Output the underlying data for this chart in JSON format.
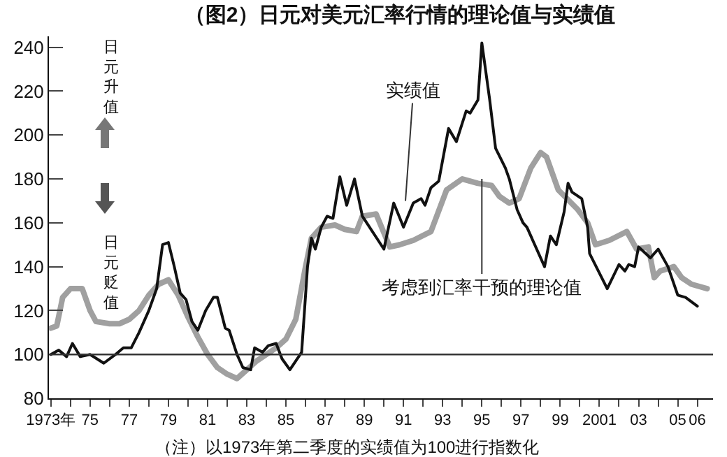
{
  "chart_data": {
    "type": "line",
    "title": "（图2）日元对美元汇率行情的理论值与实绩值",
    "xlim": [
      1972.9,
      2006.8
    ],
    "xticks": [
      {
        "value": 1973,
        "label": "1973年"
      },
      {
        "value": 1974,
        "label": null
      },
      {
        "value": 1975,
        "label": "75"
      },
      {
        "value": 1976,
        "label": null
      },
      {
        "value": 1977,
        "label": "77"
      },
      {
        "value": 1978,
        "label": null
      },
      {
        "value": 1979,
        "label": "79"
      },
      {
        "value": 1980,
        "label": null
      },
      {
        "value": 1981,
        "label": "81"
      },
      {
        "value": 1982,
        "label": null
      },
      {
        "value": 1983,
        "label": "83"
      },
      {
        "value": 1984,
        "label": null
      },
      {
        "value": 1985,
        "label": "85"
      },
      {
        "value": 1986,
        "label": null
      },
      {
        "value": 1987,
        "label": "87"
      },
      {
        "value": 1988,
        "label": null
      },
      {
        "value": 1989,
        "label": "89"
      },
      {
        "value": 1990,
        "label": null
      },
      {
        "value": 1991,
        "label": "91"
      },
      {
        "value": 1992,
        "label": null
      },
      {
        "value": 1993,
        "label": "93"
      },
      {
        "value": 1994,
        "label": null
      },
      {
        "value": 1995,
        "label": "95"
      },
      {
        "value": 1996,
        "label": null
      },
      {
        "value": 1997,
        "label": "97"
      },
      {
        "value": 1998,
        "label": null
      },
      {
        "value": 1999,
        "label": "99"
      },
      {
        "value": 2000,
        "label": null
      },
      {
        "value": 2001,
        "label": "2001"
      },
      {
        "value": 2002,
        "label": null
      },
      {
        "value": 2003,
        "label": "03"
      },
      {
        "value": 2004,
        "label": null
      },
      {
        "value": 2005,
        "label": "05"
      },
      {
        "value": 2006,
        "label": "06"
      }
    ],
    "ylim": [
      80,
      245
    ],
    "yticks": [
      80,
      100,
      120,
      140,
      160,
      180,
      200,
      220,
      240
    ],
    "grid": false,
    "marker": "none",
    "line_style": "solid",
    "ref_lines": [
      {
        "axis": "y",
        "value": 100,
        "color": "#333333"
      }
    ],
    "series": [
      {
        "color": "#a0a0a0",
        "x": [
          1973.0,
          1973.3,
          1973.6,
          1974.0,
          1974.6,
          1975.0,
          1975.3,
          1976.0,
          1976.5,
          1977.0,
          1977.5,
          1978.0,
          1978.5,
          1979.0,
          1979.5,
          1980.0,
          1980.5,
          1981.0,
          1981.5,
          1982.0,
          1982.5,
          1983.0,
          1983.5,
          1984.0,
          1984.5,
          1985.0,
          1985.5,
          1986.0,
          1986.3,
          1986.8,
          1987.5,
          1988.0,
          1988.6,
          1988.9,
          1989.6,
          1990.3,
          1990.8,
          1991.5,
          1992.4,
          1993.2,
          1994.0,
          1994.8,
          1995.5,
          1995.9,
          1996.4,
          1996.9,
          1997.5,
          1998.0,
          1998.3,
          1998.9,
          1999.9,
          2000.4,
          2000.8,
          2001.5,
          2002.4,
          2002.9,
          2003.5,
          2003.8,
          2004.1,
          2004.8,
          2005.2,
          2005.7,
          2006.5
        ],
        "values": [
          112,
          113,
          126,
          130,
          130,
          120,
          115,
          114,
          114,
          116,
          120,
          127,
          132,
          134,
          127,
          117,
          108,
          100,
          94,
          91,
          89,
          93,
          97,
          100,
          103,
          107,
          116,
          140,
          153,
          158,
          159,
          157,
          156,
          163,
          164,
          149,
          150,
          152,
          156,
          175,
          180,
          178,
          177,
          172,
          169,
          171,
          185,
          192,
          190,
          175,
          166,
          160,
          150,
          152,
          156,
          148,
          149,
          135,
          138,
          140,
          135,
          132,
          130
        ]
      },
      {
        "color": "#111111",
        "x": [
          1973.0,
          1973.4,
          1973.8,
          1974.1,
          1974.5,
          1975.0,
          1975.7,
          1976.3,
          1976.7,
          1977.1,
          1977.5,
          1978.0,
          1978.4,
          1978.7,
          1979.0,
          1979.3,
          1979.6,
          1979.9,
          1980.2,
          1980.5,
          1980.9,
          1981.3,
          1981.5,
          1981.9,
          1982.1,
          1982.5,
          1982.8,
          1983.2,
          1983.4,
          1983.8,
          1984.1,
          1984.5,
          1984.8,
          1985.2,
          1985.8,
          1986.1,
          1986.3,
          1986.5,
          1986.8,
          1987.1,
          1987.4,
          1987.75,
          1988.1,
          1988.5,
          1988.9,
          1990.0,
          1990.5,
          1991.0,
          1991.5,
          1991.9,
          1992.1,
          1992.4,
          1992.8,
          1993.3,
          1993.7,
          1994.2,
          1994.4,
          1994.8,
          1995.0,
          1995.4,
          1995.7,
          1996.2,
          1996.4,
          1996.8,
          1997.1,
          1997.3,
          1998.2,
          1998.5,
          1998.8,
          1999.2,
          1999.4,
          1999.6,
          2000.1,
          2000.4,
          2000.5,
          2001.4,
          2002.0,
          2002.3,
          2002.5,
          2002.8,
          2003.0,
          2003.6,
          2004.0,
          2004.5,
          2005.0,
          2005.4,
          2006.0
        ],
        "values": [
          100,
          102,
          99,
          105,
          99,
          100,
          96,
          100,
          103,
          103,
          110,
          120,
          130,
          150,
          151,
          140,
          128,
          125,
          115,
          111,
          120,
          126,
          126,
          112,
          111,
          100,
          94,
          93,
          103,
          101,
          104,
          105,
          98,
          93,
          101,
          140,
          153,
          148,
          158,
          163,
          162,
          181,
          168,
          180,
          163,
          148,
          169,
          158,
          169,
          171,
          168,
          176,
          179,
          203,
          197,
          211,
          210,
          216,
          242,
          216,
          194,
          185,
          180,
          166,
          160,
          158,
          140,
          154,
          150,
          165,
          178,
          174,
          171,
          158,
          146,
          130,
          141,
          138,
          141,
          140,
          149,
          144,
          148,
          140,
          127,
          126,
          122
        ]
      }
    ],
    "annotations": [
      {
        "text": "实绩值",
        "x": 1991.1,
        "y": 170
      },
      {
        "text": "考虑到汇率干预的理论值",
        "x": 1995,
        "y": 180
      },
      "日元升值",
      "日元贬值",
      "（注）以1973年第二季度的实绩值为100进行指数化"
    ]
  }
}
